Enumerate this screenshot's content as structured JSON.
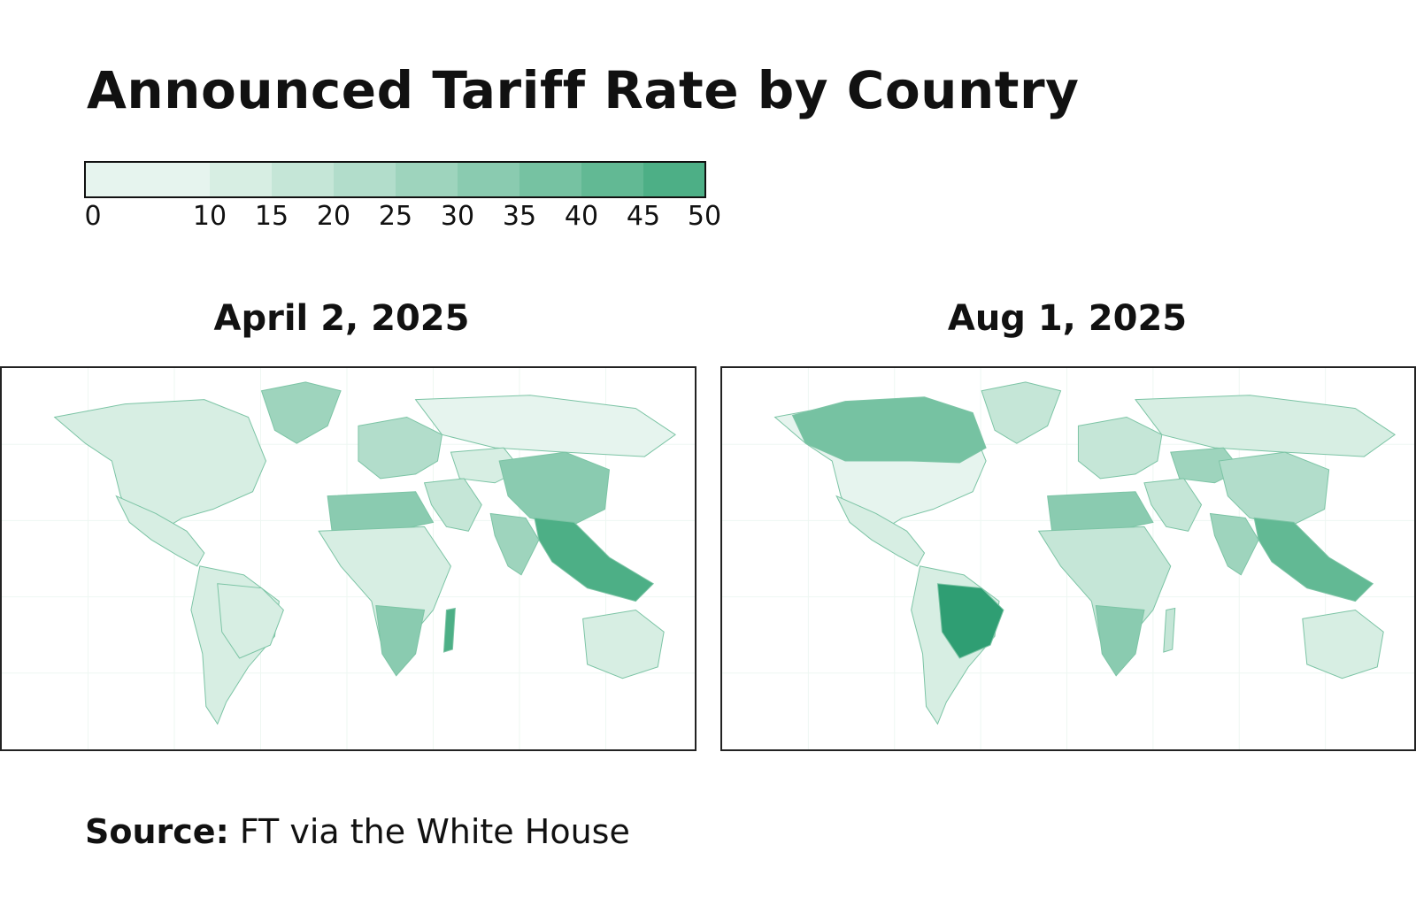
{
  "title": "Announced Tariff Rate by Country",
  "legend": {
    "ticks": [
      "0",
      "10",
      "15",
      "20",
      "25",
      "30",
      "35",
      "40",
      "45",
      "50"
    ],
    "colors": [
      "#e6f4ee",
      "#d7eee3",
      "#c5e6d7",
      "#b2ddcb",
      "#9ed4bd",
      "#8acbb0",
      "#76c2a2",
      "#62b994",
      "#4daf86"
    ]
  },
  "panels": [
    {
      "date": "April 2, 2025",
      "regions": {
        "north_america": 10,
        "greenland": 25,
        "mexico_central": 10,
        "south_america": 10,
        "brazil": 10,
        "europe": 20,
        "russia": 0,
        "china": 34,
        "india": 26,
        "southeast_asia": 46,
        "africa": 10,
        "north_africa": 30,
        "southern_africa": 31,
        "madagascar": 47,
        "australia": 10,
        "middle_east": 15,
        "central_asia": 10
      }
    },
    {
      "date": "Aug 1, 2025",
      "regions": {
        "north_america": 0,
        "canada": 35,
        "greenland": 15,
        "mexico_central": 10,
        "south_america": 10,
        "brazil": 50,
        "europe": 15,
        "russia": 10,
        "china": 20,
        "india": 25,
        "southeast_asia": 40,
        "africa": 15,
        "north_africa": 30,
        "southern_africa": 30,
        "madagascar": 15,
        "australia": 10,
        "middle_east": 15,
        "central_asia": 25
      }
    }
  ],
  "source": {
    "label": "Source:",
    "text": "FT via the White House"
  }
}
